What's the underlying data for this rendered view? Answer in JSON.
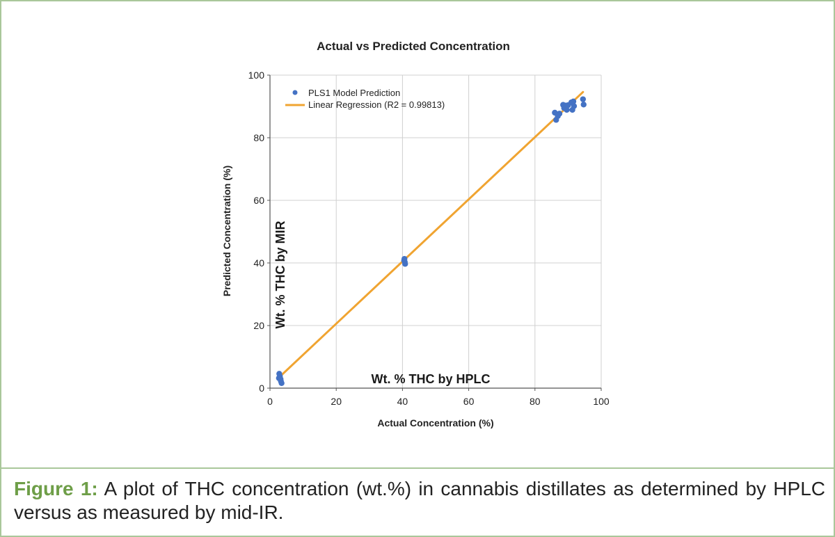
{
  "chart_data": {
    "type": "scatter",
    "title": "Actual  vs Predicted Concentration",
    "xlabel": "Actual Concentration (%)",
    "ylabel": "Predicted Concentration (%)",
    "xlim": [
      0,
      100
    ],
    "ylim": [
      0,
      100
    ],
    "x_ticks": [
      0,
      20,
      40,
      60,
      80,
      100
    ],
    "y_ticks": [
      0,
      20,
      40,
      60,
      80,
      100
    ],
    "grid": true,
    "legend_position": "top-left",
    "series": [
      {
        "name": "PLS1 Model Prediction",
        "kind": "scatter",
        "color": "#4472c4",
        "points": [
          [
            2.8,
            4.6
          ],
          [
            3.0,
            3.8
          ],
          [
            3.2,
            2.9
          ],
          [
            3.3,
            2.2
          ],
          [
            3.5,
            1.6
          ],
          [
            2.7,
            3.2
          ],
          [
            40.6,
            41.3
          ],
          [
            40.7,
            40.3
          ],
          [
            40.8,
            39.7
          ],
          [
            40.5,
            40.8
          ],
          [
            86.0,
            88.0
          ],
          [
            86.4,
            85.7
          ],
          [
            86.9,
            86.9
          ],
          [
            87.4,
            87.7
          ],
          [
            88.5,
            90.5
          ],
          [
            88.8,
            89.5
          ],
          [
            89.2,
            90.3
          ],
          [
            89.6,
            88.9
          ],
          [
            90.0,
            90.4
          ],
          [
            91.0,
            91.3
          ],
          [
            91.3,
            88.9
          ],
          [
            91.6,
            91.6
          ],
          [
            91.8,
            90.1
          ],
          [
            94.5,
            92.3
          ],
          [
            94.7,
            90.6
          ]
        ]
      },
      {
        "name": "Linear Regression (R2 = 0.99813)",
        "kind": "line",
        "color": "#f0a431",
        "x": [
          2.8,
          94.5
        ],
        "y": [
          3.5,
          94.6
        ]
      }
    ],
    "annotations": [
      {
        "text": "Wt. % THC by MIR",
        "orientation": "vertical"
      },
      {
        "text": "Wt. % THC by HPLC",
        "orientation": "horizontal"
      }
    ]
  },
  "caption": {
    "label": "Figure 1:",
    "text": " A plot of THC concentration (wt.%) in cannabis distillates as determined by HPLC versus as measured by mid-IR."
  },
  "colors": {
    "frame_border": "#a9c79a",
    "caption_label": "#6e9e48",
    "grid": "#d0d0d0",
    "axis": "#555555"
  }
}
